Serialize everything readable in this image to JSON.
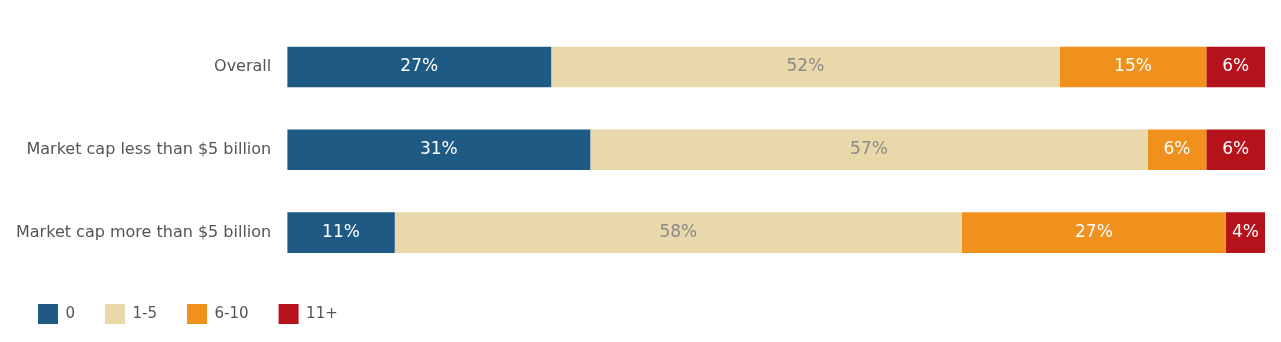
{
  "chart_data": {
    "type": "bar",
    "orientation": "horizontal",
    "stacked": true,
    "legend": "bottom left",
    "categories": [
      "Overall",
      "Market cap less than $5 billion",
      "Market cap more than $5 billion"
    ],
    "xlim": [
      0,
      100
    ],
    "series": [
      {
        "name": "0",
        "color": "#1f5a85",
        "values": [
          27,
          31,
          11
        ],
        "value_labels": [
          "27%",
          "31%",
          "11%"
        ]
      },
      {
        "name": "1-5",
        "color": "#e9d8a9",
        "values": [
          52,
          57,
          58
        ],
        "value_labels": [
          "52%",
          "57%",
          "58%"
        ]
      },
      {
        "name": "6-10",
        "color": "#f0911e",
        "values": [
          15,
          6,
          27
        ],
        "value_labels": [
          "15%",
          "6%",
          "27%"
        ]
      },
      {
        "name": "11+",
        "color": "#b5121b",
        "values": [
          6,
          6,
          4
        ],
        "value_labels": [
          "6%",
          "6%",
          "4%"
        ]
      }
    ]
  }
}
